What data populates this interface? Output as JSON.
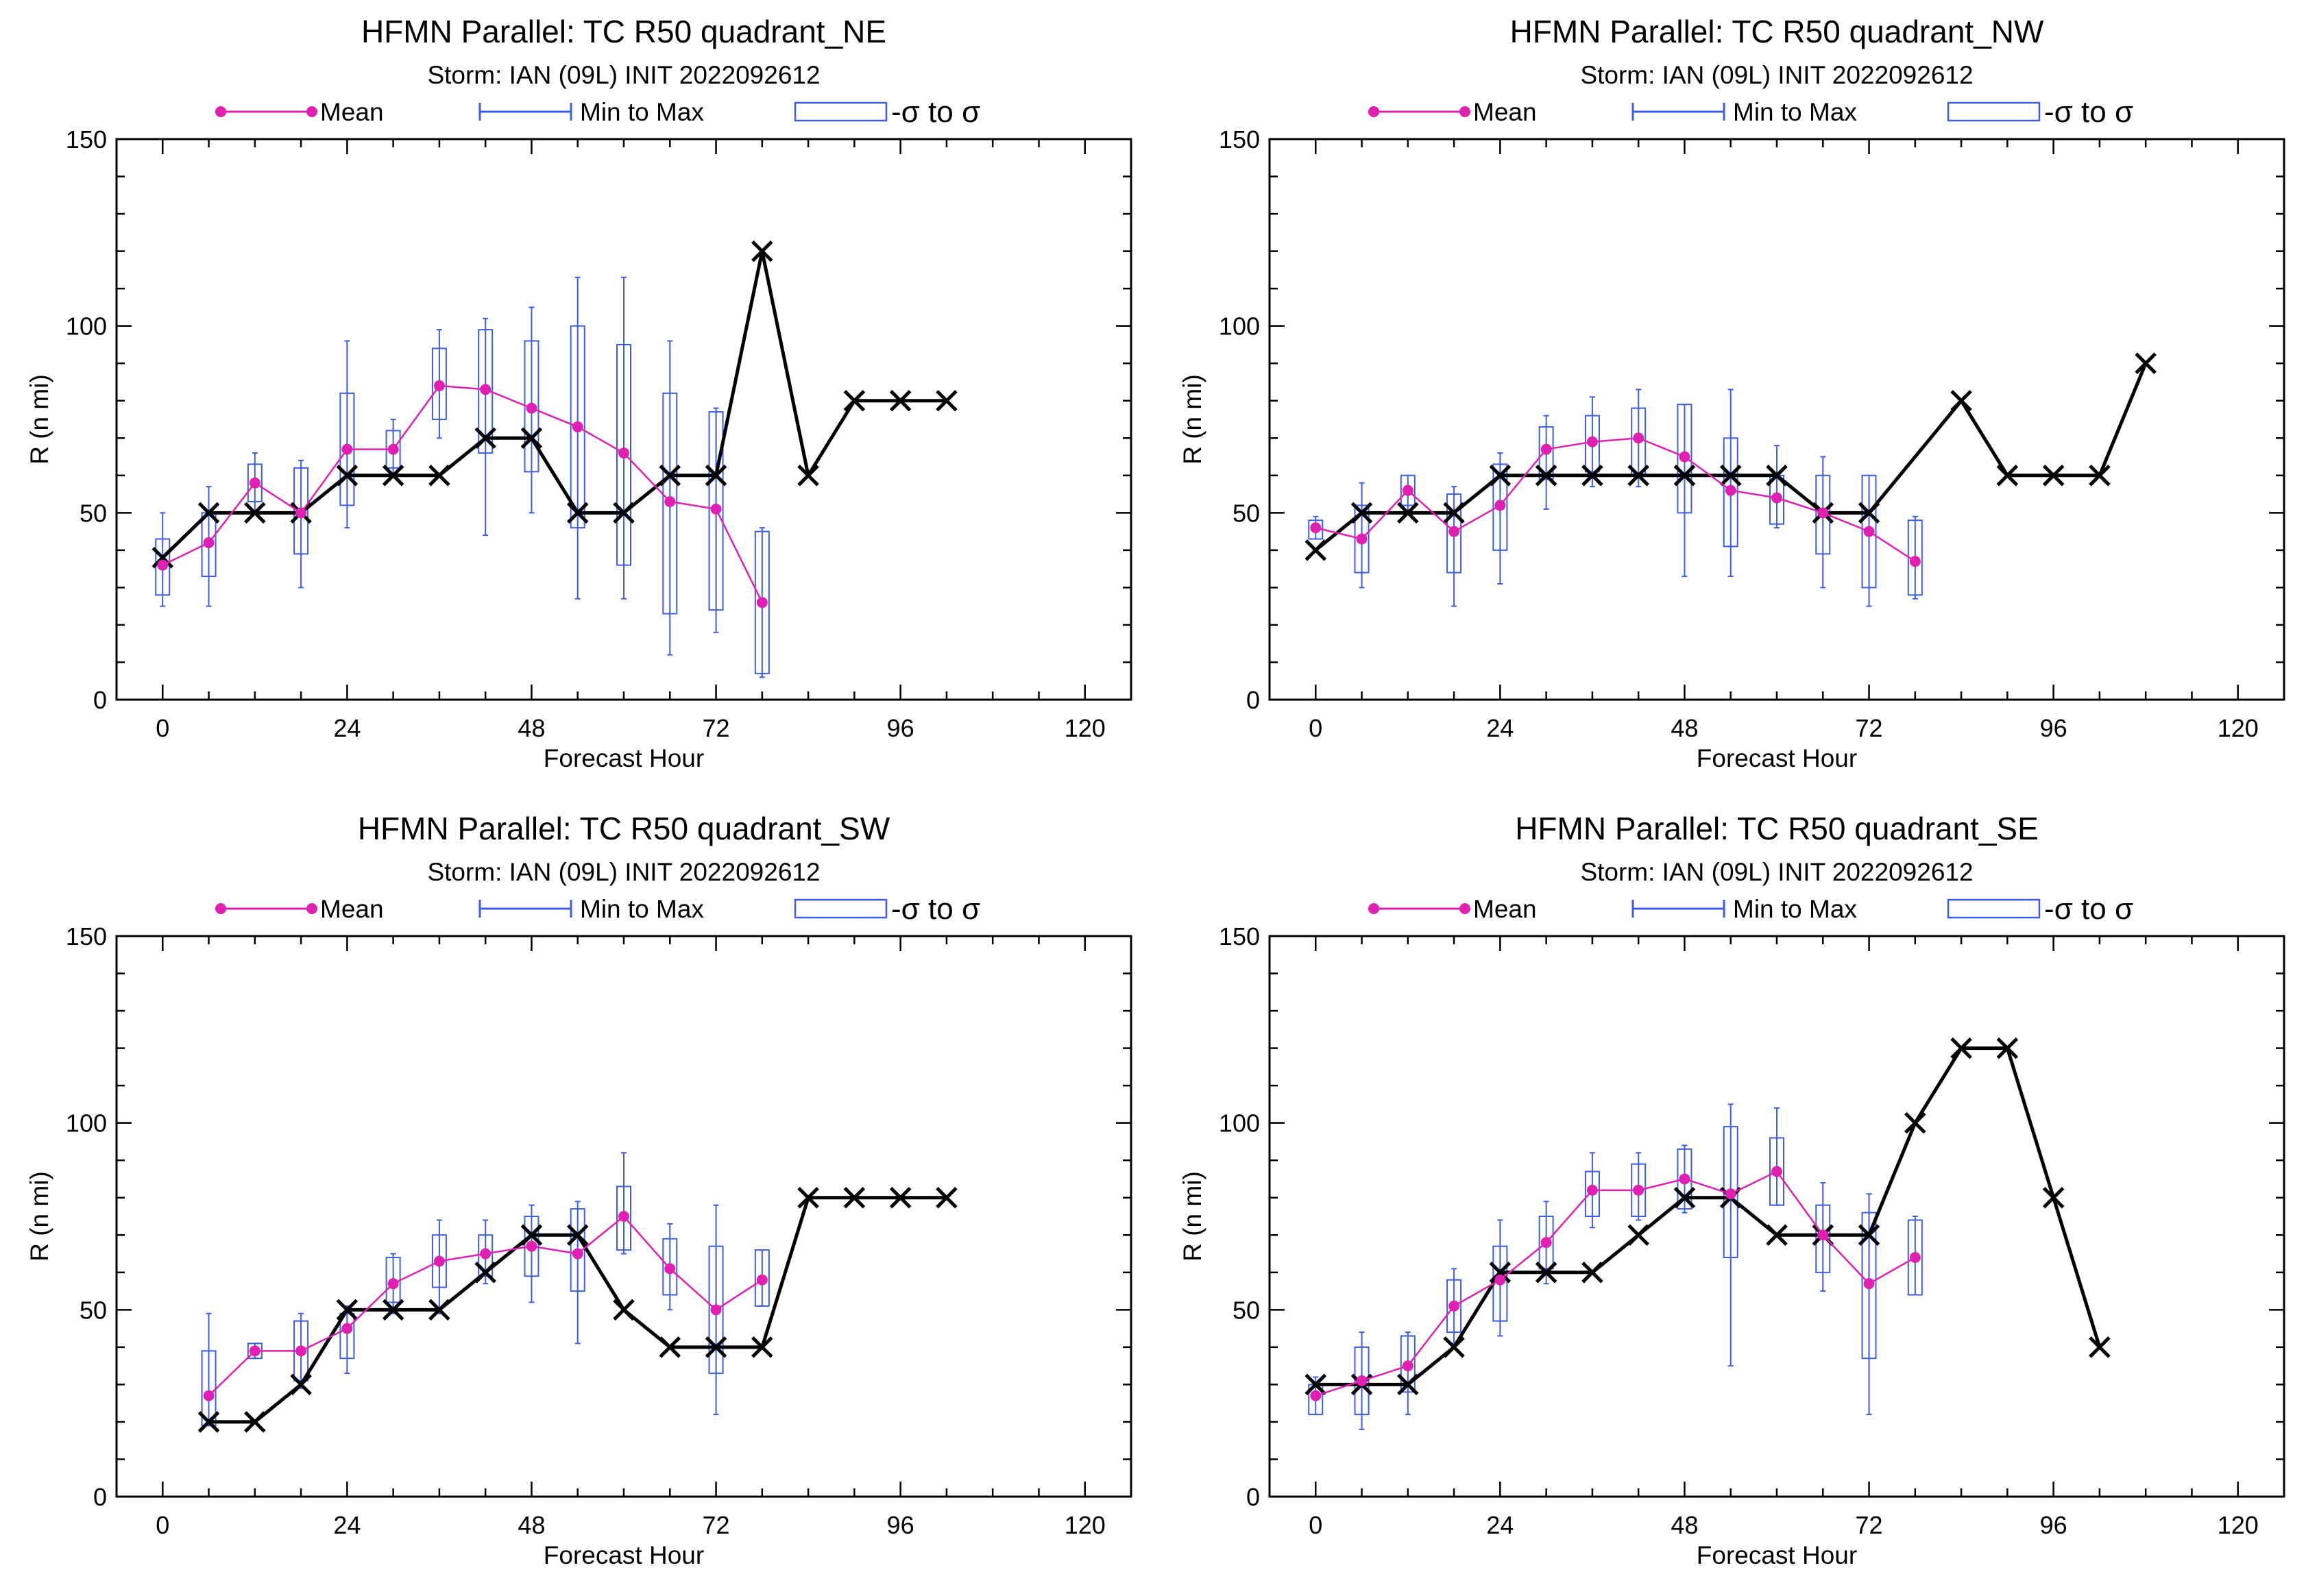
{
  "colors": {
    "mean": "#e020b0",
    "range": "#3d5ee8",
    "box": "#3d5ee8",
    "best_track": "#000000",
    "axis": "#000000"
  },
  "legend": {
    "mean_label": "Mean",
    "range_label": "Min to Max",
    "box_label": "-σ to σ"
  },
  "chart_data": [
    {
      "type": "box",
      "title": "HFMN Parallel: TC  R50 quadrant_NE",
      "subtitle": "Storm: IAN (09L) INIT 2022092612",
      "xlabel": "Forecast Hour",
      "ylabel": "R (n mi)",
      "xlim": [
        -6,
        126
      ],
      "ylim": [
        0,
        150
      ],
      "xticks": [
        0,
        24,
        48,
        72,
        96,
        120
      ],
      "yticks": [
        0,
        50,
        100,
        150
      ],
      "best_track": {
        "x": [
          0,
          6,
          12,
          18,
          24,
          30,
          36,
          42,
          48,
          54,
          60,
          66,
          72,
          78,
          84,
          90,
          96,
          102
        ],
        "y": [
          38,
          50,
          50,
          50,
          60,
          60,
          60,
          70,
          70,
          50,
          50,
          60,
          60,
          120,
          60,
          80,
          80,
          80
        ]
      },
      "mean": {
        "x": [
          0,
          6,
          12,
          18,
          24,
          30,
          36,
          42,
          48,
          54,
          60,
          66,
          72,
          78
        ],
        "y": [
          36,
          42,
          58,
          50,
          67,
          67,
          84,
          83,
          78,
          73,
          66,
          53,
          51,
          26
        ]
      },
      "boxes": [
        {
          "x": 0,
          "min": 25,
          "max": 50,
          "lo": 28,
          "hi": 43
        },
        {
          "x": 6,
          "min": 25,
          "max": 57,
          "lo": 33,
          "hi": 50
        },
        {
          "x": 12,
          "min": 50,
          "max": 66,
          "lo": 53,
          "hi": 63
        },
        {
          "x": 18,
          "min": 30,
          "max": 64,
          "lo": 39,
          "hi": 62
        },
        {
          "x": 24,
          "min": 46,
          "max": 96,
          "lo": 52,
          "hi": 82
        },
        {
          "x": 30,
          "min": 60,
          "max": 75,
          "lo": 62,
          "hi": 72
        },
        {
          "x": 36,
          "min": 70,
          "max": 99,
          "lo": 75,
          "hi": 94
        },
        {
          "x": 42,
          "min": 44,
          "max": 102,
          "lo": 66,
          "hi": 99
        },
        {
          "x": 48,
          "min": 50,
          "max": 105,
          "lo": 61,
          "hi": 96
        },
        {
          "x": 54,
          "min": 27,
          "max": 113,
          "lo": 46,
          "hi": 100
        },
        {
          "x": 60,
          "min": 27,
          "max": 113,
          "lo": 36,
          "hi": 95
        },
        {
          "x": 66,
          "min": 12,
          "max": 96,
          "lo": 23,
          "hi": 82
        },
        {
          "x": 72,
          "min": 18,
          "max": 78,
          "lo": 24,
          "hi": 77
        },
        {
          "x": 78,
          "min": 6,
          "max": 46,
          "lo": 7,
          "hi": 45
        }
      ]
    },
    {
      "type": "box",
      "title": "HFMN Parallel: TC  R50 quadrant_NW",
      "subtitle": "Storm: IAN (09L) INIT 2022092612",
      "xlabel": "Forecast Hour",
      "ylabel": "R (n mi)",
      "xlim": [
        -6,
        126
      ],
      "ylim": [
        0,
        150
      ],
      "xticks": [
        0,
        24,
        48,
        72,
        96,
        120
      ],
      "yticks": [
        0,
        50,
        100,
        150
      ],
      "best_track": {
        "x": [
          0,
          6,
          12,
          18,
          24,
          30,
          36,
          42,
          48,
          54,
          60,
          66,
          72,
          84,
          90,
          96,
          102,
          108
        ],
        "y": [
          40,
          50,
          50,
          50,
          60,
          60,
          60,
          60,
          60,
          60,
          60,
          50,
          50,
          80,
          60,
          60,
          60,
          90
        ]
      },
      "mean": {
        "x": [
          0,
          6,
          12,
          18,
          24,
          30,
          36,
          42,
          48,
          54,
          60,
          66,
          72,
          78
        ],
        "y": [
          46,
          43,
          56,
          45,
          52,
          67,
          69,
          70,
          65,
          56,
          54,
          50,
          45,
          37
        ]
      },
      "boxes": [
        {
          "x": 0,
          "min": 43,
          "max": 49,
          "lo": 43,
          "hi": 48
        },
        {
          "x": 6,
          "min": 30,
          "max": 58,
          "lo": 34,
          "hi": 52
        },
        {
          "x": 12,
          "min": 50,
          "max": 60,
          "lo": 52,
          "hi": 60
        },
        {
          "x": 18,
          "min": 25,
          "max": 57,
          "lo": 34,
          "hi": 55
        },
        {
          "x": 24,
          "min": 31,
          "max": 66,
          "lo": 40,
          "hi": 63
        },
        {
          "x": 30,
          "min": 51,
          "max": 76,
          "lo": 59,
          "hi": 73
        },
        {
          "x": 36,
          "min": 57,
          "max": 81,
          "lo": 61,
          "hi": 76
        },
        {
          "x": 42,
          "min": 57,
          "max": 83,
          "lo": 60,
          "hi": 78
        },
        {
          "x": 48,
          "min": 33,
          "max": 79,
          "lo": 50,
          "hi": 79
        },
        {
          "x": 54,
          "min": 33,
          "max": 83,
          "lo": 41,
          "hi": 70
        },
        {
          "x": 60,
          "min": 46,
          "max": 68,
          "lo": 47,
          "hi": 60
        },
        {
          "x": 66,
          "min": 30,
          "max": 65,
          "lo": 39,
          "hi": 60
        },
        {
          "x": 72,
          "min": 25,
          "max": 60,
          "lo": 30,
          "hi": 60
        },
        {
          "x": 78,
          "min": 27,
          "max": 49,
          "lo": 28,
          "hi": 48
        }
      ]
    },
    {
      "type": "box",
      "title": "HFMN Parallel: TC  R50 quadrant_SW",
      "subtitle": "Storm: IAN (09L) INIT 2022092612",
      "xlabel": "Forecast Hour",
      "ylabel": "R (n mi)",
      "xlim": [
        -6,
        126
      ],
      "ylim": [
        0,
        150
      ],
      "xticks": [
        0,
        24,
        48,
        72,
        96,
        120
      ],
      "yticks": [
        0,
        50,
        100,
        150
      ],
      "best_track": {
        "x": [
          6,
          12,
          18,
          24,
          30,
          36,
          42,
          48,
          54,
          60,
          66,
          72,
          78,
          84,
          90,
          96,
          102
        ],
        "y": [
          20,
          20,
          30,
          50,
          50,
          50,
          60,
          70,
          70,
          50,
          40,
          40,
          40,
          80,
          80,
          80,
          80
        ]
      },
      "mean": {
        "x": [
          6,
          12,
          18,
          24,
          30,
          36,
          42,
          48,
          54,
          60,
          66,
          72,
          78
        ],
        "y": [
          27,
          39,
          39,
          45,
          57,
          63,
          65,
          67,
          65,
          75,
          61,
          50,
          58
        ]
      },
      "boxes": [
        {
          "x": 6,
          "min": 19,
          "max": 49,
          "lo": 19,
          "hi": 39
        },
        {
          "x": 12,
          "min": 37,
          "max": 41,
          "lo": 37,
          "hi": 41
        },
        {
          "x": 18,
          "min": 29,
          "max": 49,
          "lo": 31,
          "hi": 47
        },
        {
          "x": 24,
          "min": 33,
          "max": 51,
          "lo": 37,
          "hi": 49
        },
        {
          "x": 30,
          "min": 49,
          "max": 65,
          "lo": 52,
          "hi": 64
        },
        {
          "x": 36,
          "min": 49,
          "max": 74,
          "lo": 56,
          "hi": 70
        },
        {
          "x": 42,
          "min": 57,
          "max": 74,
          "lo": 59,
          "hi": 70
        },
        {
          "x": 48,
          "min": 52,
          "max": 78,
          "lo": 59,
          "hi": 75
        },
        {
          "x": 54,
          "min": 41,
          "max": 79,
          "lo": 55,
          "hi": 77
        },
        {
          "x": 60,
          "min": 65,
          "max": 92,
          "lo": 66,
          "hi": 83
        },
        {
          "x": 66,
          "min": 50,
          "max": 73,
          "lo": 54,
          "hi": 69
        },
        {
          "x": 72,
          "min": 22,
          "max": 78,
          "lo": 33,
          "hi": 67
        },
        {
          "x": 78,
          "min": 51,
          "max": 66,
          "lo": 51,
          "hi": 66
        }
      ]
    },
    {
      "type": "box",
      "title": "HFMN Parallel: TC  R50 quadrant_SE",
      "subtitle": "Storm: IAN (09L) INIT 2022092612",
      "xlabel": "Forecast Hour",
      "ylabel": "R (n mi)",
      "xlim": [
        -6,
        126
      ],
      "ylim": [
        0,
        150
      ],
      "xticks": [
        0,
        24,
        48,
        72,
        96,
        120
      ],
      "yticks": [
        0,
        50,
        100,
        150
      ],
      "best_track": {
        "x": [
          0,
          6,
          12,
          18,
          24,
          30,
          36,
          42,
          48,
          54,
          60,
          66,
          72,
          78,
          84,
          90,
          96,
          102
        ],
        "y": [
          30,
          30,
          30,
          40,
          60,
          60,
          60,
          70,
          80,
          80,
          70,
          70,
          70,
          100,
          120,
          120,
          80,
          40
        ]
      },
      "mean": {
        "x": [
          0,
          6,
          12,
          18,
          24,
          30,
          36,
          42,
          48,
          54,
          60,
          66,
          72,
          78
        ],
        "y": [
          27,
          31,
          35,
          51,
          58,
          68,
          82,
          82,
          85,
          81,
          87,
          70,
          57,
          64
        ]
      },
      "boxes": [
        {
          "x": 0,
          "min": 22,
          "max": 32,
          "lo": 22,
          "hi": 30
        },
        {
          "x": 6,
          "min": 18,
          "max": 44,
          "lo": 22,
          "hi": 40
        },
        {
          "x": 12,
          "min": 22,
          "max": 44,
          "lo": 28,
          "hi": 43
        },
        {
          "x": 18,
          "min": 41,
          "max": 61,
          "lo": 44,
          "hi": 58
        },
        {
          "x": 24,
          "min": 43,
          "max": 74,
          "lo": 47,
          "hi": 67
        },
        {
          "x": 30,
          "min": 57,
          "max": 79,
          "lo": 61,
          "hi": 75
        },
        {
          "x": 36,
          "min": 72,
          "max": 92,
          "lo": 75,
          "hi": 87
        },
        {
          "x": 42,
          "min": 74,
          "max": 92,
          "lo": 75,
          "hi": 89
        },
        {
          "x": 48,
          "min": 76,
          "max": 94,
          "lo": 77,
          "hi": 93
        },
        {
          "x": 54,
          "min": 35,
          "max": 105,
          "lo": 64,
          "hi": 99
        },
        {
          "x": 60,
          "min": 78,
          "max": 104,
          "lo": 78,
          "hi": 96
        },
        {
          "x": 66,
          "min": 55,
          "max": 84,
          "lo": 60,
          "hi": 78
        },
        {
          "x": 72,
          "min": 22,
          "max": 81,
          "lo": 37,
          "hi": 76
        },
        {
          "x": 78,
          "min": 54,
          "max": 75,
          "lo": 54,
          "hi": 74
        }
      ]
    }
  ]
}
